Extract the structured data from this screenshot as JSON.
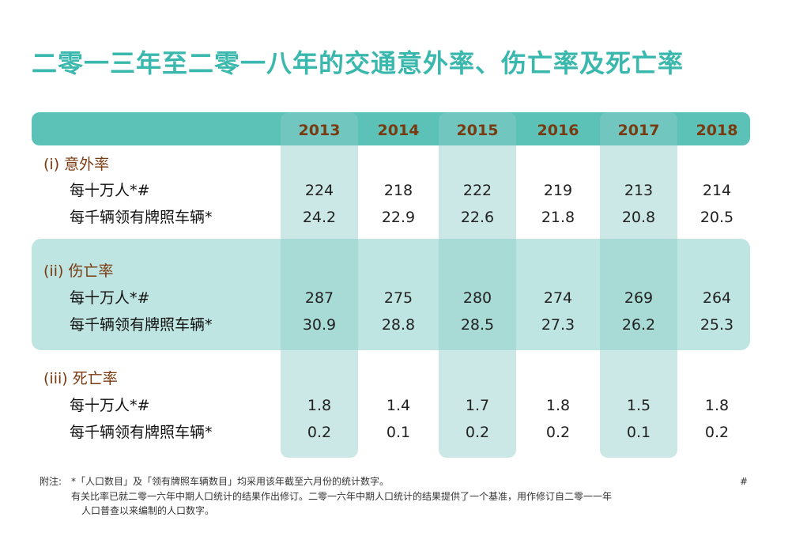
{
  "title": "二零一三年至二零一八年的交通意外率、伤亡率及死亡率",
  "years": [
    "2013",
    "2014",
    "2015",
    "2016",
    "2017",
    "2018"
  ],
  "sections": [
    {
      "label": "(i)  意外率",
      "rows": [
        {
          "label": "每十万人*#",
          "values": [
            "224",
            "218",
            "222",
            "219",
            "213",
            "214"
          ]
        },
        {
          "label": "每千辆领有牌照车辆*",
          "values": [
            "24.2",
            "22.9",
            "22.6",
            "21.8",
            "20.8",
            "20.5"
          ]
        }
      ]
    },
    {
      "label": "(ii)  伤亡率",
      "rows": [
        {
          "label": "每十万人*#",
          "values": [
            "287",
            "275",
            "280",
            "274",
            "269",
            "264"
          ]
        },
        {
          "label": "每千辆领有牌照车辆*",
          "values": [
            "30.9",
            "28.8",
            "28.5",
            "27.3",
            "26.2",
            "25.3"
          ]
        }
      ]
    },
    {
      "label": "(iii) 死亡率",
      "rows": [
        {
          "label": "每十万人*#",
          "values": [
            "1.8",
            "1.4",
            "1.7",
            "1.8",
            "1.5",
            "1.8"
          ]
        },
        {
          "label": "每千辆领有牌照车辆*",
          "values": [
            "0.2",
            "0.1",
            "0.2",
            "0.2",
            "0.1",
            "0.2"
          ]
        }
      ]
    }
  ],
  "notes": {
    "prefix": "附注:",
    "star": "*「人口数目」及「领有牌照车辆数目」均采用该年截至六月份的统计数字。",
    "hash_mark": "#",
    "hash_line1": "有关比率已就二零一六年中期人口统计的结果作出修订。二零一六年中期人口统计的结果提供了一个基准，用作修订自二零一一年",
    "hash_line2": "人口普查以来编制的人口数字。"
  },
  "colors": {
    "title": "#3bb8ad",
    "header_bar": "#5cc2b8",
    "band": "#bfe5e2",
    "year_text": "#7a3a10",
    "section_text": "#7a3a10"
  }
}
